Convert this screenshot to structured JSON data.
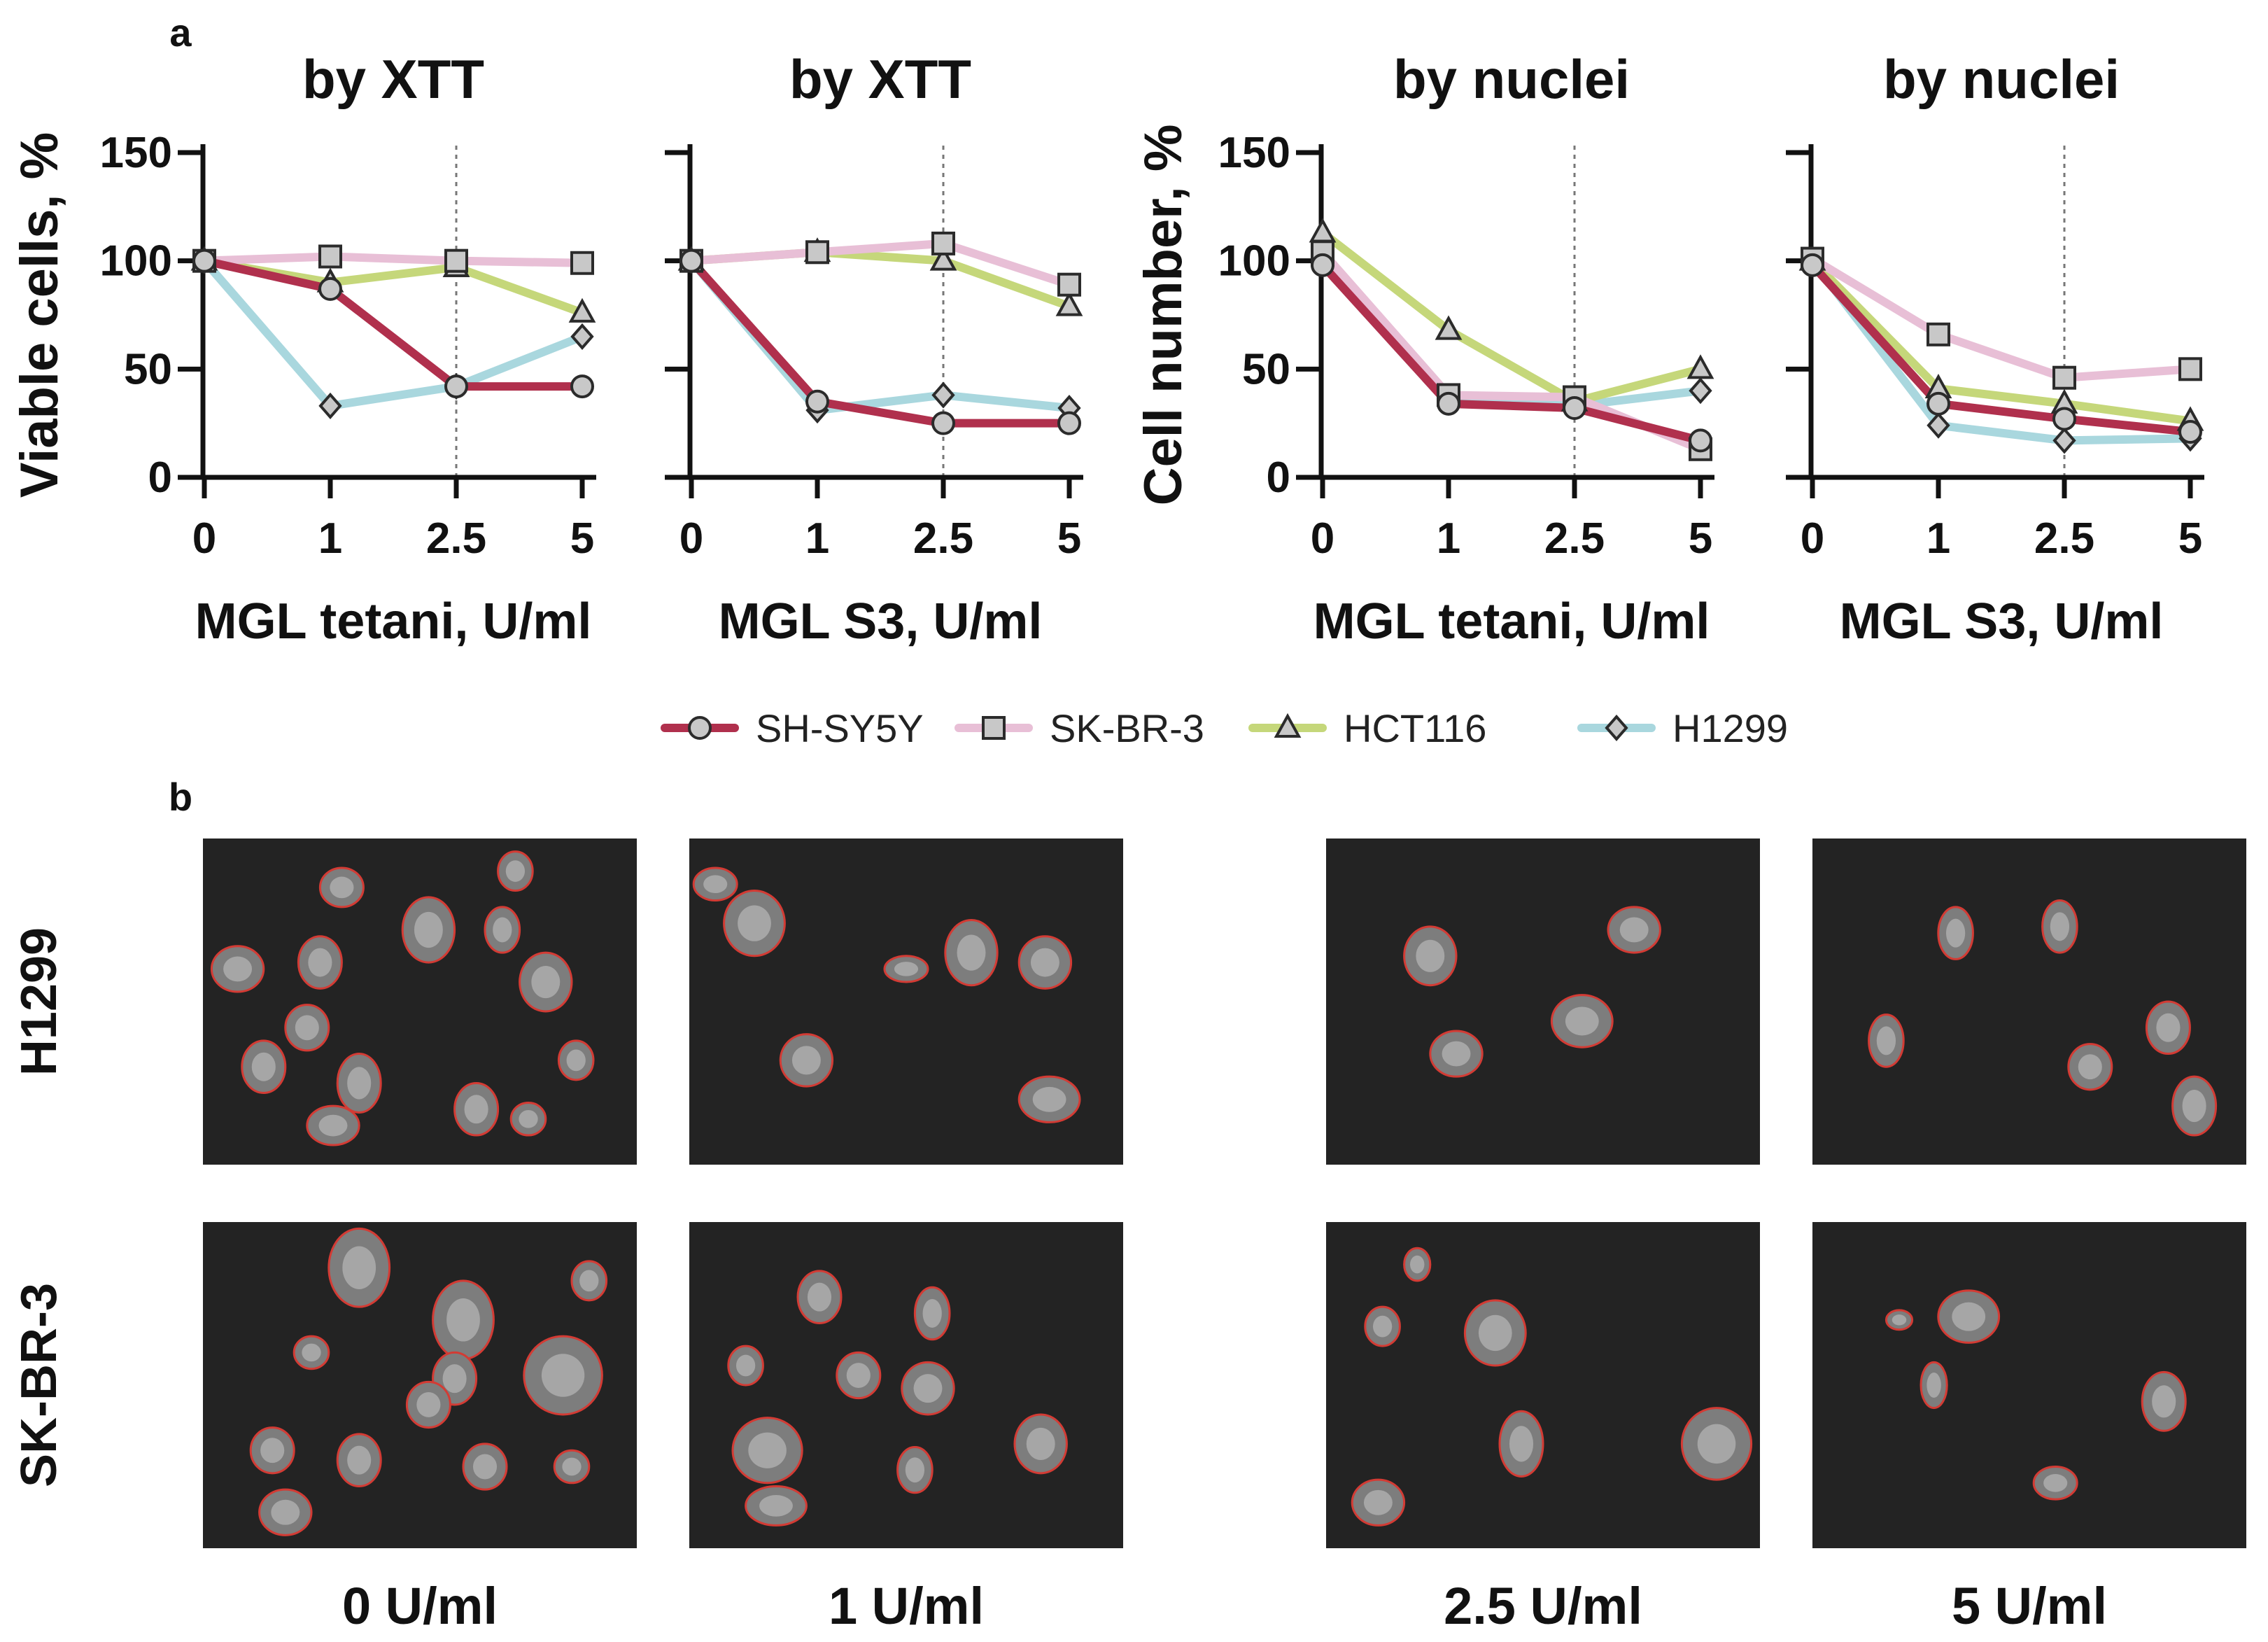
{
  "panel_labels": {
    "a": "a",
    "b": "b"
  },
  "x_categories": [
    "0",
    "1",
    "2.5",
    "5"
  ],
  "y_ticks": [
    "0",
    "50",
    "100",
    "150"
  ],
  "y_labels": {
    "xtt": "Viable cells, %",
    "nuclei": "Cell number, %"
  },
  "legend": [
    {
      "name": "SH-SY5Y",
      "color": "#b0304d",
      "marker": "circle"
    },
    {
      "name": "SK-BR-3",
      "color": "#e8bfd6",
      "marker": "square"
    },
    {
      "name": "HCT116",
      "color": "#c5d77a",
      "marker": "triangle"
    },
    {
      "name": "H1299",
      "color": "#a9d7de",
      "marker": "diamond"
    }
  ],
  "chart_data": [
    {
      "type": "line",
      "title": "by XTT",
      "xlabel": "MGL tetani, U/ml",
      "ylabel": "Viable cells, %",
      "categories": [
        "0",
        "1",
        "2.5",
        "5"
      ],
      "ylim": [
        0,
        150
      ],
      "reference_line_x": "2.5",
      "series": [
        {
          "name": "SH-SY5Y",
          "values": [
            100,
            87,
            42,
            42
          ]
        },
        {
          "name": "SK-BR-3",
          "values": [
            100,
            102,
            100,
            99
          ]
        },
        {
          "name": "HCT116",
          "values": [
            100,
            90,
            97,
            76
          ]
        },
        {
          "name": "H1299",
          "values": [
            100,
            33,
            42,
            65
          ]
        }
      ]
    },
    {
      "type": "line",
      "title": "by XTT",
      "xlabel": "MGL S3, U/ml",
      "ylabel": "",
      "categories": [
        "0",
        "1",
        "2.5",
        "5"
      ],
      "ylim": [
        0,
        150
      ],
      "reference_line_x": "2.5",
      "series": [
        {
          "name": "SH-SY5Y",
          "values": [
            100,
            35,
            25,
            25
          ]
        },
        {
          "name": "SK-BR-3",
          "values": [
            100,
            104,
            108,
            89
          ]
        },
        {
          "name": "HCT116",
          "values": [
            100,
            104,
            100,
            79
          ]
        },
        {
          "name": "H1299",
          "values": [
            100,
            31,
            38,
            32
          ]
        }
      ]
    },
    {
      "type": "line",
      "title": "by nuclei",
      "xlabel": "MGL tetani, U/ml",
      "ylabel": "Cell number, %",
      "categories": [
        "0",
        "1",
        "2.5",
        "5"
      ],
      "ylim": [
        0,
        150
      ],
      "reference_line_x": "2.5",
      "series": [
        {
          "name": "SH-SY5Y",
          "values": [
            98,
            34,
            32,
            17
          ]
        },
        {
          "name": "SK-BR-3",
          "values": [
            104,
            38,
            37,
            13
          ]
        },
        {
          "name": "HCT116",
          "values": [
            113,
            68,
            35,
            50
          ]
        },
        {
          "name": "H1299",
          "values": [
            100,
            35,
            33,
            40
          ]
        }
      ]
    },
    {
      "type": "line",
      "title": "by nuclei",
      "xlabel": "MGL S3, U/ml",
      "ylabel": "",
      "categories": [
        "0",
        "1",
        "2.5",
        "5"
      ],
      "ylim": [
        0,
        150
      ],
      "reference_line_x": "2.5",
      "series": [
        {
          "name": "SH-SY5Y",
          "values": [
            98,
            34,
            27,
            21
          ]
        },
        {
          "name": "SK-BR-3",
          "values": [
            101,
            66,
            46,
            50
          ]
        },
        {
          "name": "HCT116",
          "values": [
            100,
            41,
            34,
            26
          ]
        },
        {
          "name": "H1299",
          "values": [
            100,
            24,
            17,
            18
          ]
        }
      ]
    }
  ],
  "micrographs": {
    "row_labels": [
      "H1299",
      "SK-BR-3"
    ],
    "column_labels": [
      "0 U/ml",
      "1 U/ml",
      "2.5 U/ml",
      "5 U/ml"
    ],
    "background_color": "#232323",
    "outline_color": "#d33b34"
  }
}
